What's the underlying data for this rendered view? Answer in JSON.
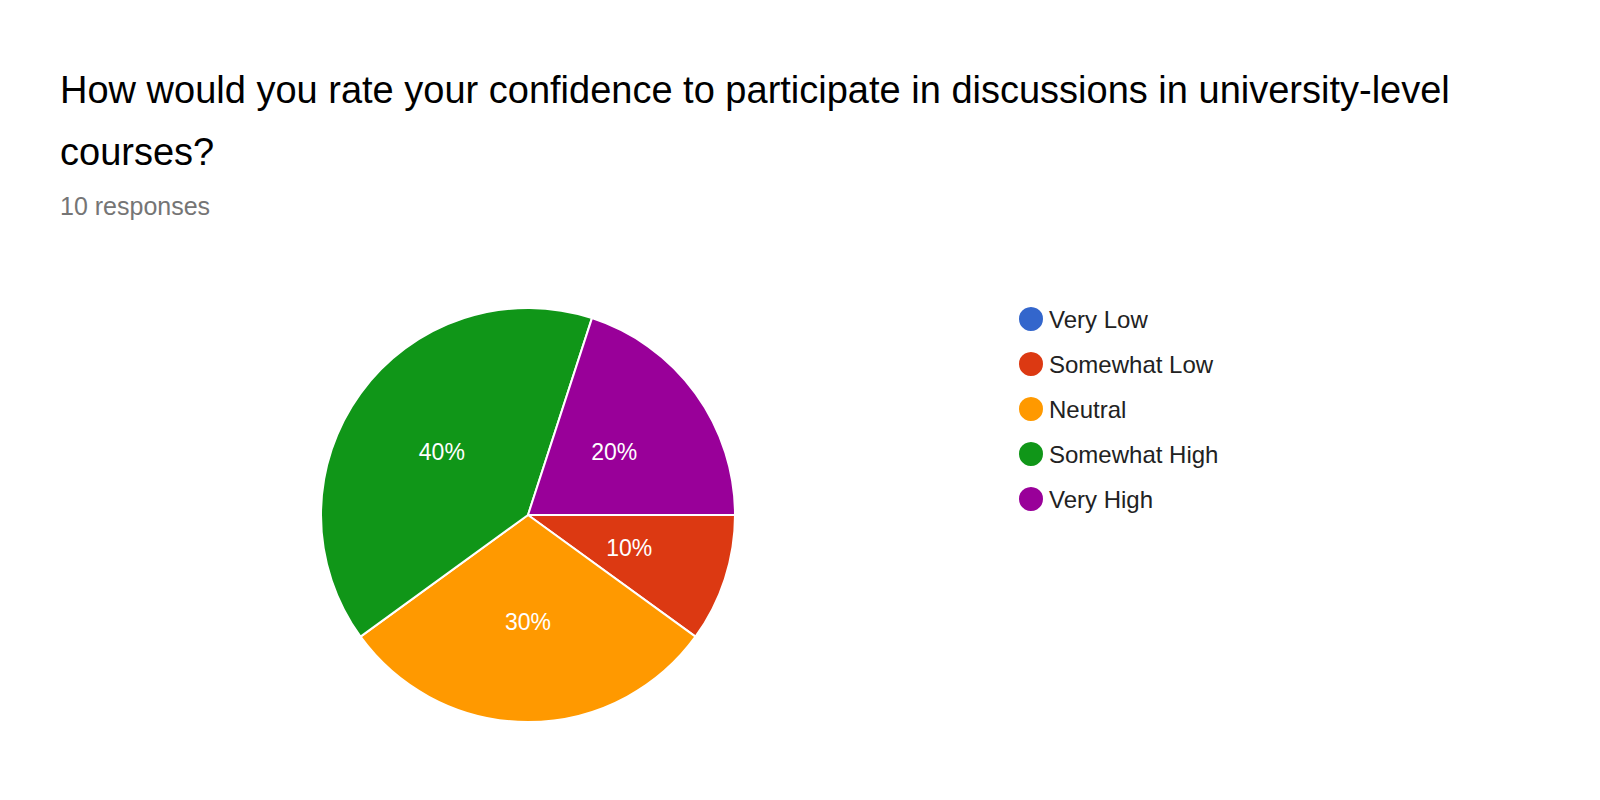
{
  "chart_data": {
    "type": "pie",
    "title": "How would you rate your confidence to participate in discussions in university-level courses?",
    "subtitle": "10 responses",
    "categories": [
      "Very Low",
      "Somewhat Low",
      "Neutral",
      "Somewhat High",
      "Very High"
    ],
    "values": [
      0,
      10,
      30,
      40,
      20
    ],
    "value_labels": [
      null,
      "10%",
      "30%",
      "40%",
      "20%"
    ],
    "colors": [
      "#3366cc",
      "#dc3912",
      "#ff9900",
      "#109618",
      "#990099"
    ],
    "data_labels": true,
    "legend": "right"
  }
}
